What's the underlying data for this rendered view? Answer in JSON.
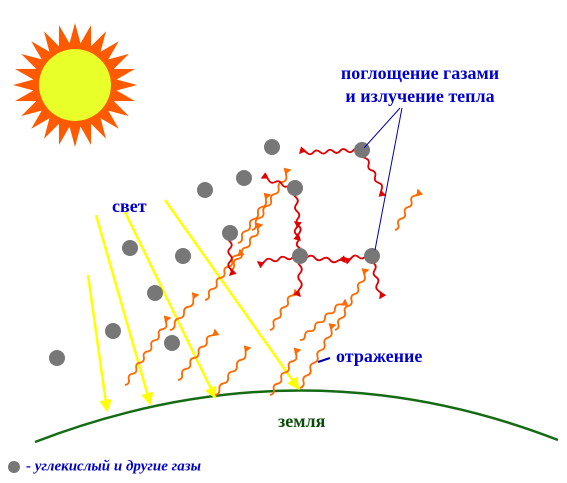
{
  "labels": {
    "absorption": [
      "поглощение газами",
      "и излучение тепла"
    ],
    "light": "свет",
    "reflection": "отражение",
    "earth": "земля",
    "legend": "- углекислый и другие газы"
  }
}
